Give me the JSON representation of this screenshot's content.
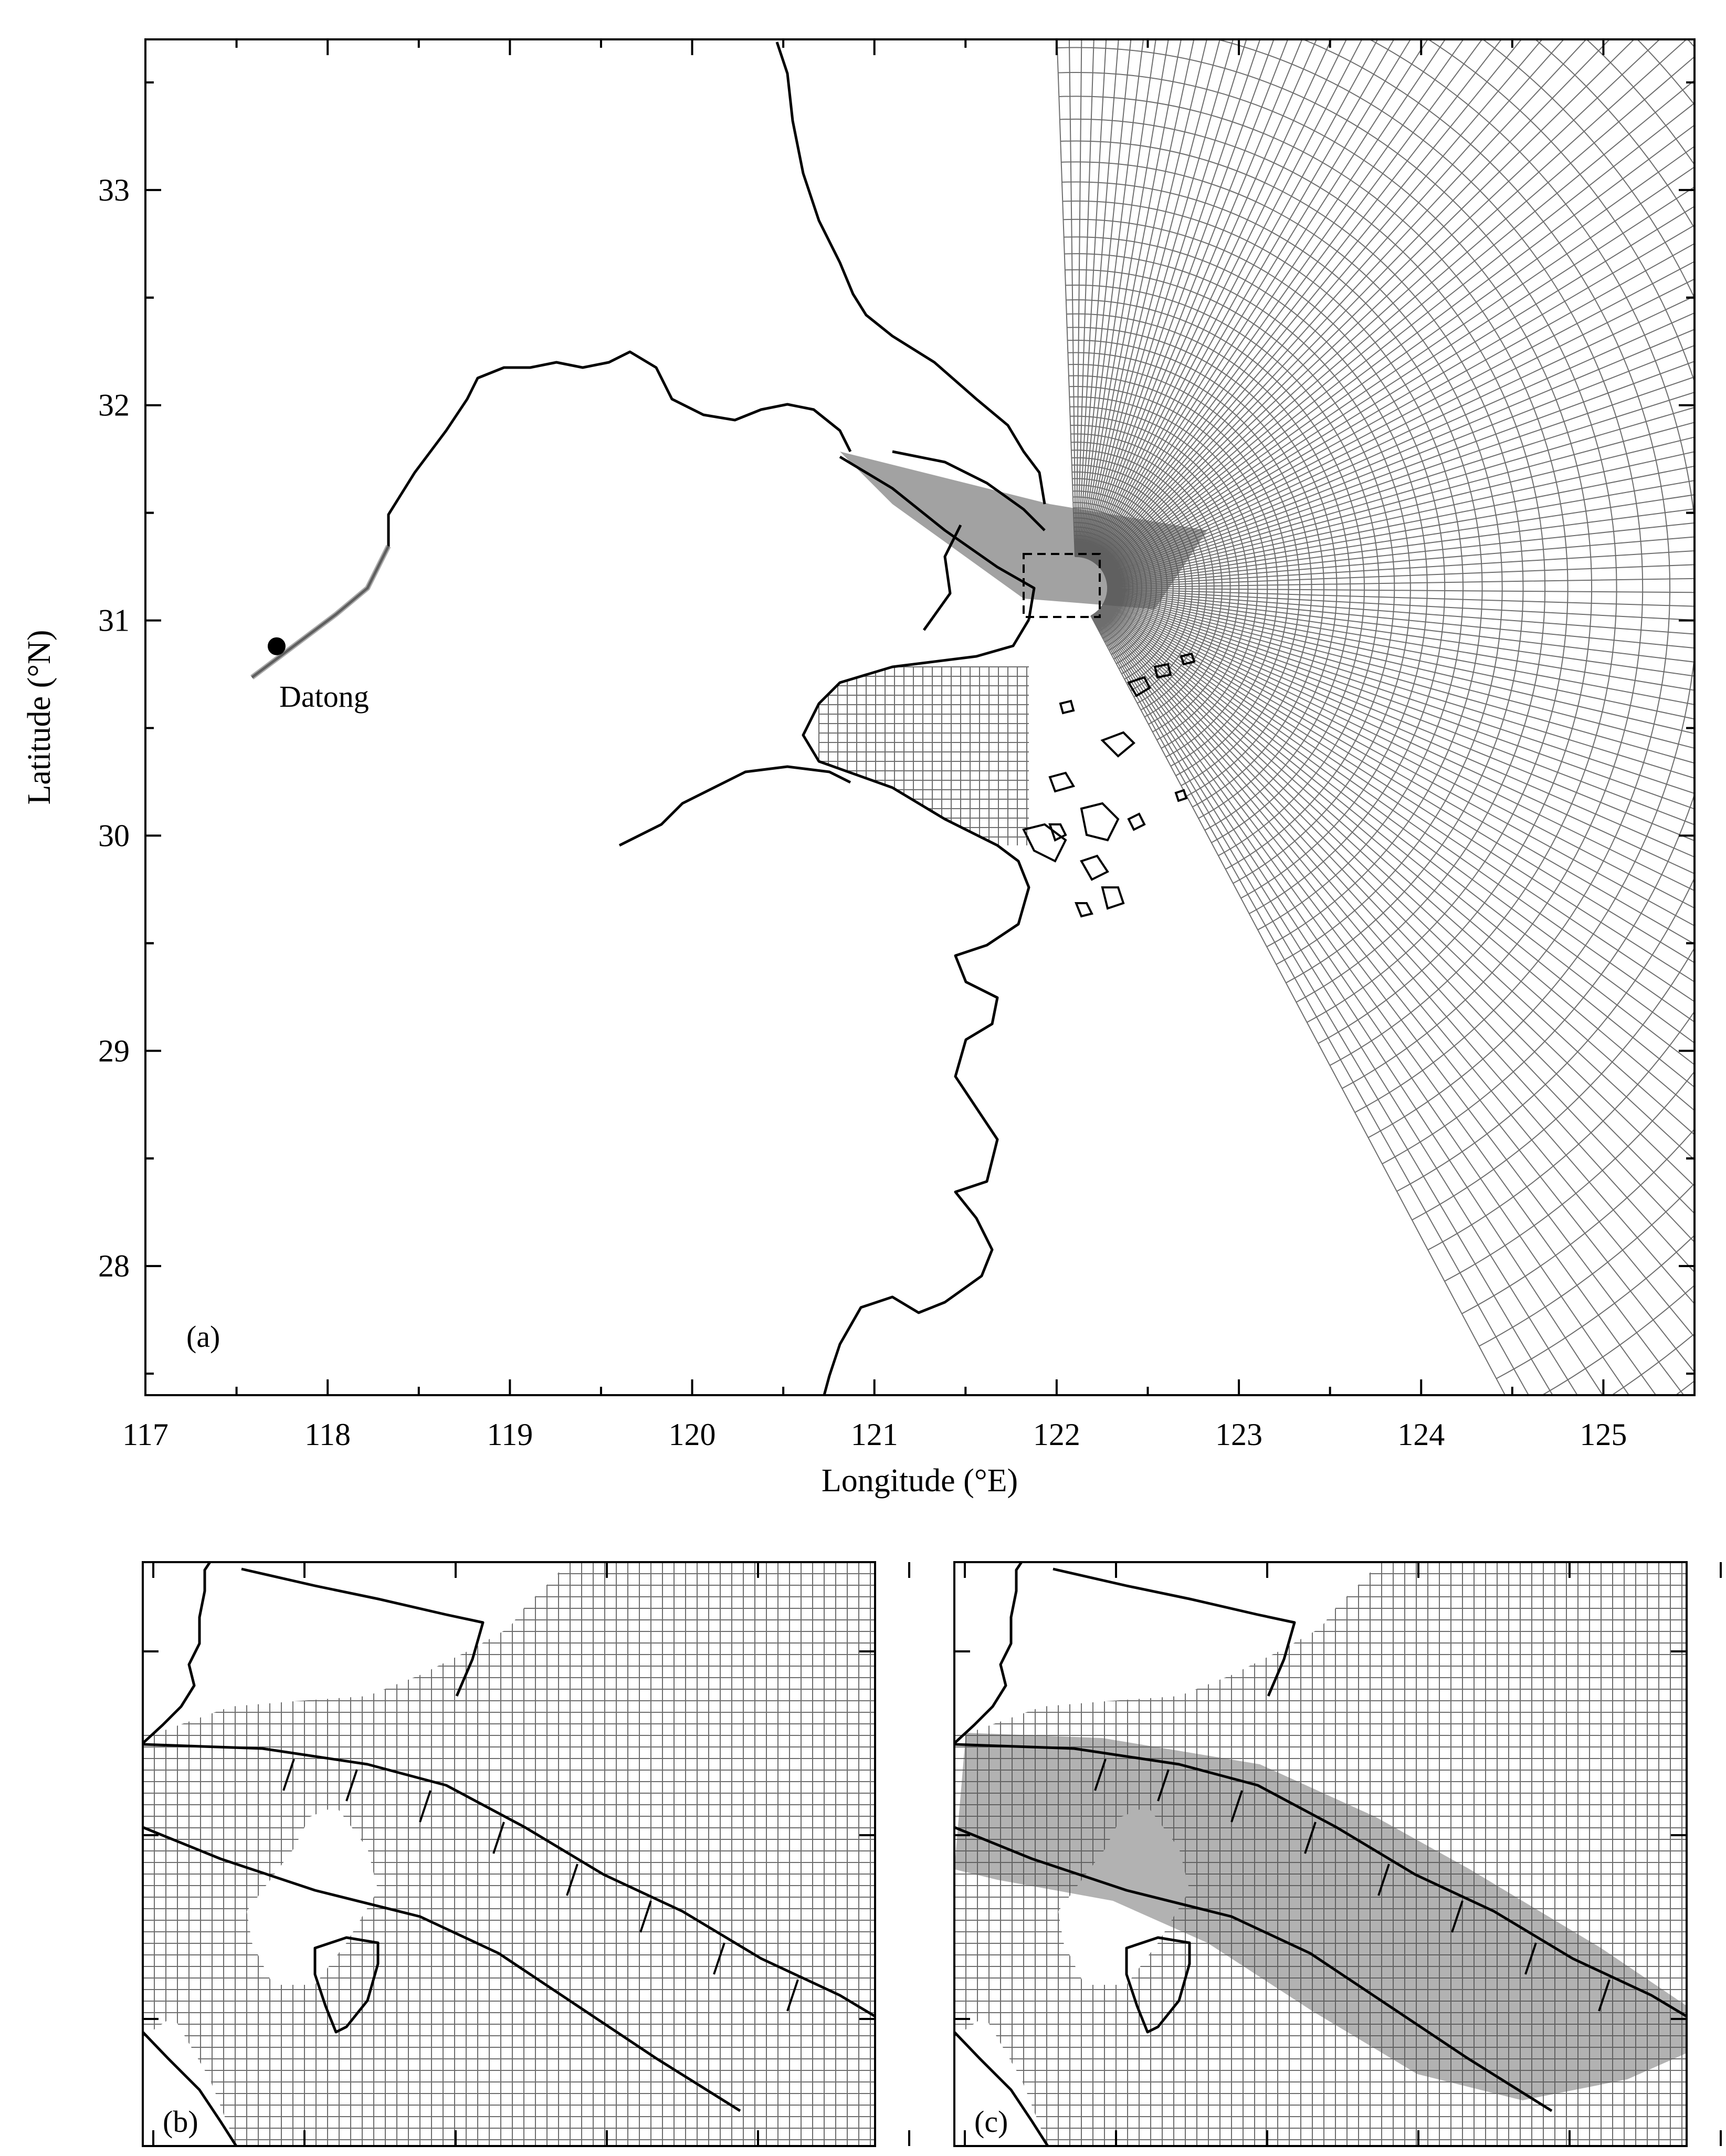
{
  "panel_a": {
    "label": "(a)",
    "xlabel": "Longitude (°E)",
    "ylabel": "Latitude (°N)",
    "x_ticks": [
      "117",
      "118",
      "119",
      "120",
      "121",
      "122",
      "123",
      "124",
      "125"
    ],
    "y_ticks": [
      "28",
      "29",
      "30",
      "31",
      "32",
      "33"
    ],
    "xlim": [
      117,
      125.5
    ],
    "ylim": [
      27.4,
      33.7
    ],
    "station": {
      "name": "Datong",
      "lon": 117.72,
      "lat": 30.88
    }
  },
  "panel_b": {
    "label": "(b)"
  },
  "panel_c": {
    "label": "(c)"
  },
  "colors": {
    "grid": "#6e6e6e",
    "coast": "#000000",
    "shading": "#555555"
  }
}
